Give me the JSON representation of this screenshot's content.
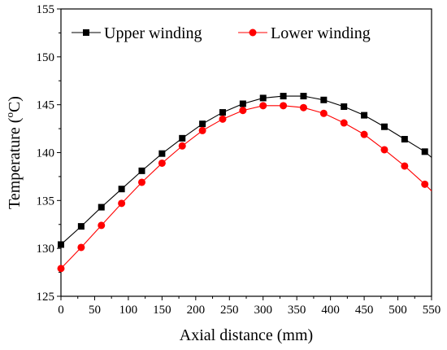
{
  "chart_data": {
    "type": "line",
    "title": "",
    "xlabel": "Axial distance (mm)",
    "ylabel_main": "Temperature (",
    "ylabel_sup": "o",
    "ylabel_tail": "C)",
    "xlim": [
      0,
      550
    ],
    "ylim": [
      125,
      155
    ],
    "xticks": [
      0,
      50,
      100,
      150,
      200,
      250,
      300,
      350,
      400,
      450,
      500,
      550
    ],
    "yticks": [
      125,
      130,
      135,
      140,
      145,
      150,
      155
    ],
    "grid": false,
    "legend_position": "top-left",
    "x": [
      0,
      30,
      60,
      90,
      120,
      150,
      180,
      210,
      240,
      270,
      300,
      330,
      360,
      390,
      420,
      450,
      480,
      510,
      540
    ],
    "series": [
      {
        "name": "Upper winding",
        "color": "#000000",
        "marker": "square",
        "values": [
          130.4,
          132.3,
          134.3,
          136.2,
          138.1,
          139.9,
          141.5,
          143.0,
          144.2,
          145.1,
          145.7,
          145.9,
          145.9,
          145.5,
          144.8,
          143.9,
          142.7,
          141.4,
          140.1
        ],
        "line_end": [
          550,
          139.5
        ]
      },
      {
        "name": "Lower winding",
        "color": "#ff0000",
        "marker": "circle",
        "values": [
          127.9,
          130.1,
          132.4,
          134.7,
          136.9,
          138.9,
          140.7,
          142.3,
          143.5,
          144.4,
          144.9,
          144.9,
          144.7,
          144.1,
          143.1,
          141.9,
          140.3,
          138.6,
          136.7
        ],
        "line_end": [
          550,
          136.0
        ]
      }
    ]
  }
}
